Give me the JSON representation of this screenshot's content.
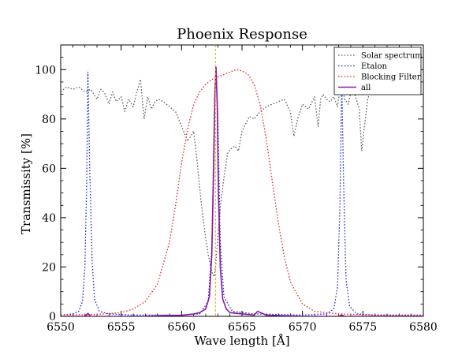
{
  "chart_data": {
    "type": "line",
    "title": "Phoenix Response",
    "xlabel": "Wave length [Å]",
    "ylabel": "Transmissity [%]",
    "xlim": [
      6550,
      6580
    ],
    "ylim": [
      0,
      110
    ],
    "xticks": [
      6550,
      6555,
      6560,
      6565,
      6570,
      6575,
      6580
    ],
    "xtick_labels": [
      "6550",
      "6555",
      "6560",
      "6565",
      "6570",
      "6575",
      "6580"
    ],
    "yticks": [
      0,
      20,
      40,
      60,
      80,
      100
    ],
    "ytick_labels": [
      "0",
      "20",
      "40",
      "60",
      "80",
      "100"
    ],
    "grid": false,
    "legend": "top-right",
    "reference_line": {
      "x": 6562.8,
      "color": "#e8a020"
    },
    "series": [
      {
        "name": "Solar spectrum",
        "color": "#606060",
        "style": "dotted",
        "x": [
          6550,
          6550.5,
          6551,
          6551.5,
          6552,
          6552.5,
          6553,
          6553.3,
          6553.6,
          6554,
          6554.3,
          6554.6,
          6555,
          6555.3,
          6555.6,
          6556,
          6556.3,
          6556.6,
          6556.9,
          6557.2,
          6557.5,
          6557.8,
          6558.1,
          6558.5,
          6559,
          6559.5,
          6560,
          6560.5,
          6561,
          6561.3,
          6561.6,
          6561.9,
          6562.2,
          6562.5,
          6562.7,
          6562.85,
          6563,
          6563.2,
          6563.5,
          6563.8,
          6564.1,
          6564.4,
          6564.7,
          6565,
          6565.3,
          6565.6,
          6566,
          6566.5,
          6567,
          6567.5,
          6568,
          6568.5,
          6569,
          6569.3,
          6569.6,
          6570,
          6570.5,
          6571,
          6571.3,
          6571.5,
          6571.7,
          6572,
          6572.3,
          6572.6,
          6572.9,
          6573.2,
          6573.5,
          6573.8,
          6574.1,
          6574.4,
          6574.7,
          6574.9,
          6575.1,
          6575.4,
          6575.7
        ],
        "y": [
          91,
          93,
          92,
          93,
          91,
          92,
          88,
          92,
          91,
          86,
          91,
          87,
          89,
          83,
          88,
          85,
          91,
          96,
          80,
          89,
          84,
          87,
          88,
          87,
          85,
          83,
          77,
          71,
          75,
          62,
          47,
          35,
          25,
          18,
          16,
          22,
          32,
          44,
          56,
          66,
          68,
          69,
          67,
          75,
          78,
          81,
          80,
          83,
          85,
          86,
          87,
          88,
          83,
          73,
          80,
          86,
          84,
          89,
          77,
          88,
          90,
          88,
          87,
          89,
          85,
          95,
          88,
          86,
          93,
          89,
          84,
          67,
          76,
          88,
          93
        ]
      },
      {
        "name": "Etalon",
        "color": "#1f2bd6",
        "style": "dotted",
        "x": [
          6550,
          6551,
          6551.5,
          6551.8,
          6552,
          6552.15,
          6552.25,
          6552.4,
          6552.6,
          6552.8,
          6553.2,
          6554,
          6556,
          6560,
          6561.5,
          6562.2,
          6562.5,
          6562.7,
          6562.85,
          6563,
          6563.2,
          6563.5,
          6564.2,
          6566,
          6570,
          6572,
          6572.6,
          6572.9,
          6573.1,
          6573.25,
          6573.4,
          6573.6,
          6573.9,
          6574.5,
          6576,
          6580
        ],
        "y": [
          0.5,
          1,
          2,
          6,
          20,
          55,
          99,
          60,
          22,
          7,
          2,
          1,
          0.5,
          0.5,
          1,
          6,
          28,
          80,
          101,
          82,
          30,
          8,
          2,
          1,
          0.5,
          1,
          3,
          12,
          45,
          96,
          55,
          15,
          4,
          1,
          0.5,
          0.5
        ]
      },
      {
        "name": "Blocking Filter",
        "color": "#e8281e",
        "style": "dotted",
        "x": [
          6550,
          6553,
          6555,
          6556,
          6557,
          6558,
          6559,
          6559.5,
          6560,
          6560.5,
          6561,
          6561.5,
          6562,
          6562.5,
          6563,
          6563.5,
          6564,
          6564.5,
          6565,
          6565.5,
          6566,
          6566.5,
          6567,
          6567.5,
          6568,
          6568.5,
          6569,
          6570,
          6571,
          6573,
          6576,
          6580
        ],
        "y": [
          0.5,
          0.8,
          1.5,
          3,
          6,
          13,
          30,
          45,
          62,
          76,
          86,
          91,
          94,
          96,
          97,
          98,
          99,
          100,
          99.5,
          98,
          94,
          86,
          72,
          55,
          38,
          24,
          14,
          5,
          2,
          1,
          0.5,
          0.3
        ]
      },
      {
        "name": "all",
        "color": "#8a1aa0",
        "style": "solid",
        "x": [
          6550,
          6552,
          6552.25,
          6552.5,
          6554,
          6557,
          6558,
          6560,
          6561,
          6561.5,
          6562,
          6562.3,
          6562.5,
          6562.65,
          6562.75,
          6562.85,
          6562.95,
          6563.05,
          6563.2,
          6563.4,
          6563.7,
          6564,
          6565,
          6566,
          6566.3,
          6567,
          6570,
          6573,
          6573.25,
          6573.5,
          6576,
          6580
        ],
        "y": [
          0,
          0,
          1.2,
          0,
          0,
          0,
          0.3,
          0.4,
          1,
          1.5,
          3,
          8,
          25,
          60,
          90,
          101,
          85,
          50,
          20,
          7,
          3,
          1.5,
          1,
          0.5,
          2,
          0.5,
          0,
          0,
          0.5,
          0,
          0,
          0
        ]
      }
    ]
  }
}
